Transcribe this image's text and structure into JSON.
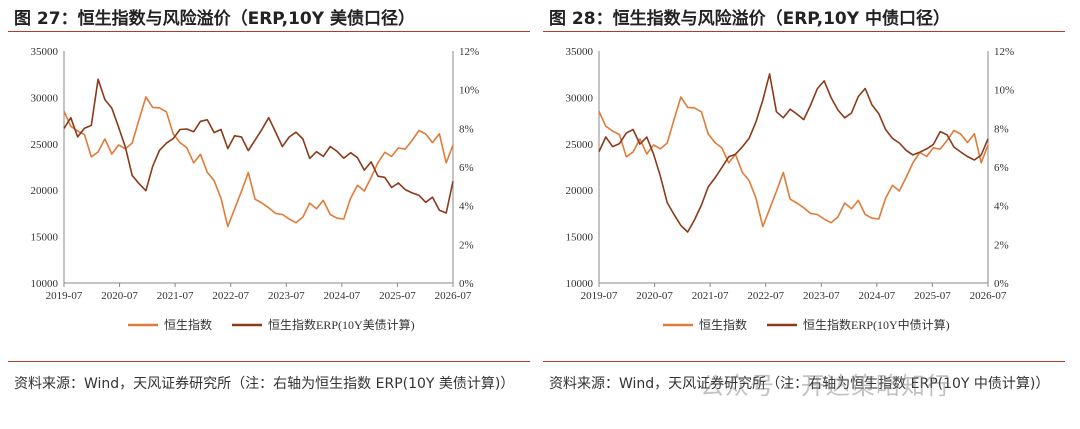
{
  "figures": [
    {
      "title": "图 27：恒生指数与风险溢价（ERP,10Y 美债口径）",
      "source": "资料来源：Wind，天风证券研究所（注：右轴为恒生指数 ERP(10Y 美债计算)）",
      "chart_data": {
        "type": "line",
        "x_ticks": [
          "2019-07",
          "2020-07",
          "2021-07",
          "2022-07",
          "2023-07",
          "2024-07",
          "2025-07",
          "2026-07"
        ],
        "left_axis": {
          "ticks": [
            "35000",
            "30000",
            "25000",
            "20000",
            "15000",
            "10000"
          ],
          "ylim": [
            10000,
            35000
          ]
        },
        "right_axis": {
          "ticks": [
            "12%",
            "10%",
            "8%",
            "6%",
            "4%",
            "2%",
            "0%"
          ],
          "ylim": [
            0,
            12
          ]
        },
        "series": [
          {
            "name": "恒生指数",
            "axis": "left",
            "color": "#e07b39",
            "values": [
              28500,
              27000,
              26500,
              26000,
              23500,
              24000,
              25500,
              24000,
              25000,
              24500,
              25000,
              27500,
              30000,
              29000,
              29000,
              28500,
              26000,
              25000,
              24500,
              23000,
              24000,
              22000,
              21000,
              19000,
              16000,
              18000,
              20000,
              22000,
              19000,
              18500,
              18000,
              17500,
              17500,
              17000,
              16500,
              17000,
              18500,
              18000,
              19000,
              17500,
              17000,
              16800,
              19000,
              20500,
              20000,
              21500,
              23000,
              24000,
              23500,
              24500,
              24500,
              25500,
              26500,
              26000,
              25000,
              26000,
              23000,
              25000
            ]
          },
          {
            "name": "恒生指数ERP(10Y美债计算)",
            "axis": "right",
            "color": "#8b3a1a",
            "values": [
              8.0,
              8.5,
              7.5,
              8.0,
              8.2,
              10.6,
              9.5,
              9.0,
              8.0,
              7.0,
              5.6,
              5.2,
              4.8,
              6.0,
              6.8,
              7.2,
              7.5,
              8.0,
              8.0,
              7.8,
              8.3,
              8.4,
              7.8,
              8.0,
              7.0,
              7.6,
              7.5,
              6.8,
              7.4,
              8.0,
              8.6,
              7.8,
              7.0,
              7.5,
              7.8,
              7.5,
              6.5,
              6.8,
              6.5,
              7.0,
              6.8,
              6.5,
              6.8,
              6.5,
              5.8,
              6.2,
              5.5,
              5.5,
              5.0,
              5.2,
              4.8,
              4.6,
              4.5,
              4.2,
              4.5,
              3.8,
              3.6,
              5.2
            ]
          }
        ],
        "legend": "bottom"
      }
    },
    {
      "title": "图 28：恒生指数与风险溢价（ERP,10Y 中债口径）",
      "source": "资料来源：Wind，天风证券研究所（注：右轴为恒生指数 ERP(10Y 中债计算)）",
      "chart_data": {
        "type": "line",
        "x_ticks": [
          "2019-07",
          "2020-07",
          "2021-07",
          "2022-07",
          "2023-07",
          "2024-07",
          "2025-07",
          "2026-07"
        ],
        "left_axis": {
          "ticks": [
            "35000",
            "30000",
            "25000",
            "20000",
            "15000",
            "10000"
          ],
          "ylim": [
            10000,
            35000
          ]
        },
        "right_axis": {
          "ticks": [
            "12%",
            "10%",
            "8%",
            "6%",
            "4%",
            "2%",
            "0%"
          ],
          "ylim": [
            0,
            12
          ]
        },
        "series": [
          {
            "name": "恒生指数",
            "axis": "left",
            "color": "#e07b39",
            "values": [
              28500,
              27000,
              26500,
              26000,
              23500,
              24000,
              25500,
              24000,
              25000,
              24500,
              25000,
              27500,
              30000,
              29000,
              29000,
              28500,
              26000,
              25000,
              24500,
              23000,
              24000,
              22000,
              21000,
              19000,
              16000,
              18000,
              20000,
              22000,
              19000,
              18500,
              18000,
              17500,
              17500,
              17000,
              16500,
              17000,
              18500,
              18000,
              19000,
              17500,
              17000,
              16800,
              19000,
              20500,
              20000,
              21500,
              23000,
              24000,
              23500,
              24500,
              24500,
              25500,
              26500,
              26000,
              25000,
              26000,
              23000,
              25000
            ]
          },
          {
            "name": "恒生指数ERP(10Y中债计算)",
            "axis": "right",
            "color": "#8b3a1a",
            "values": [
              6.8,
              7.5,
              7.0,
              7.2,
              7.8,
              8.0,
              7.2,
              7.5,
              6.6,
              5.5,
              4.2,
              3.6,
              3.0,
              2.6,
              3.2,
              4.0,
              5.0,
              5.5,
              6.0,
              6.5,
              6.6,
              7.0,
              7.5,
              8.4,
              9.5,
              10.8,
              8.8,
              8.5,
              9.0,
              8.8,
              8.5,
              9.2,
              10.0,
              10.4,
              9.6,
              9.0,
              8.6,
              8.8,
              9.6,
              10.0,
              9.2,
              8.8,
              8.0,
              7.5,
              7.2,
              6.8,
              6.6,
              6.8,
              7.0,
              7.2,
              7.8,
              7.6,
              7.0,
              6.8,
              6.6,
              6.4,
              6.6,
              7.4
            ]
          }
        ],
        "legend": "bottom"
      }
    }
  ],
  "watermark": "公众号 · 开达策略知行"
}
